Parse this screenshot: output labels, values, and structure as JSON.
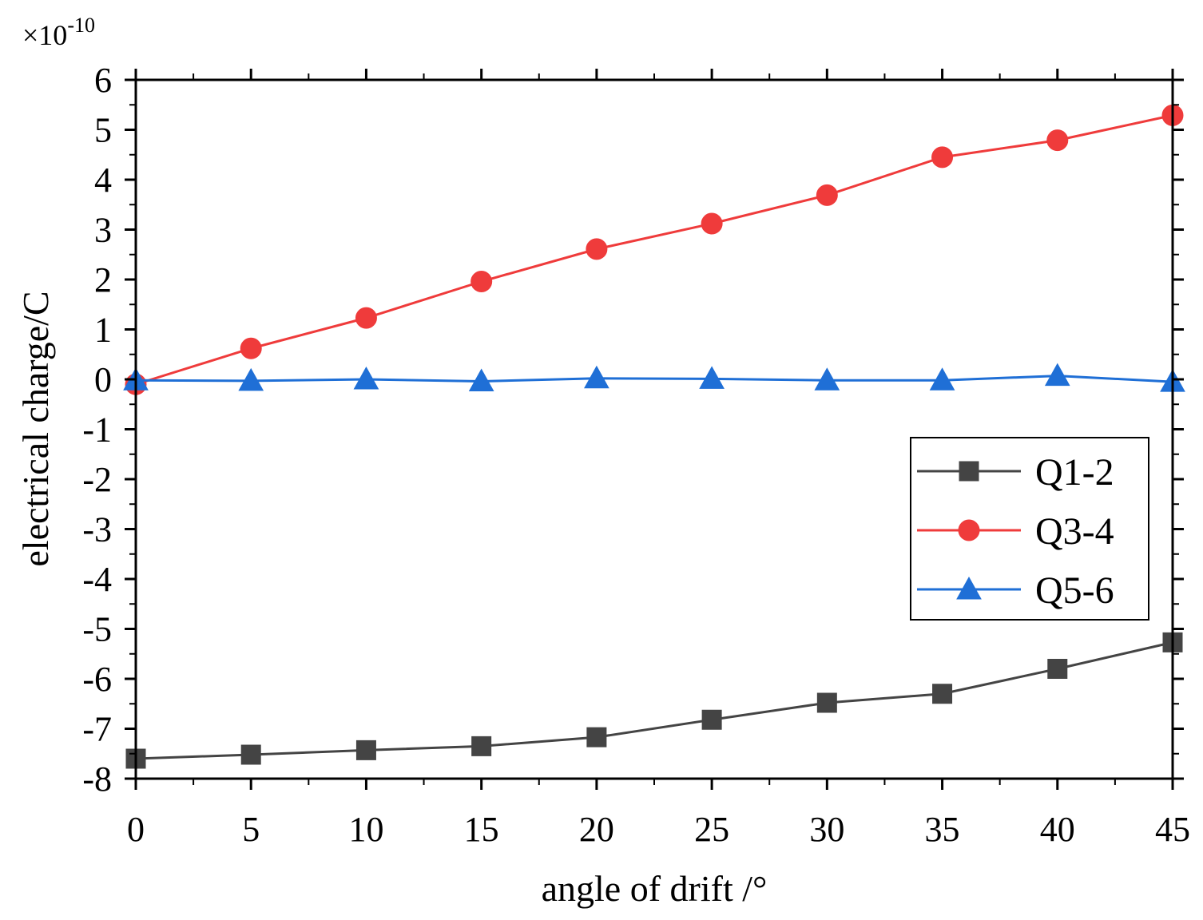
{
  "chart_data": {
    "type": "line",
    "title": "",
    "xlabel": "angle of drift /°",
    "ylabel": "electrical charge/C",
    "y_multiplier": {
      "base": "×10",
      "exponent": "-10"
    },
    "xlim": [
      0,
      45
    ],
    "ylim": [
      -8,
      6
    ],
    "x_ticks": [
      0,
      5,
      10,
      15,
      20,
      25,
      30,
      35,
      40,
      45
    ],
    "x_tick_labels": [
      "0",
      "5",
      "10",
      "15",
      "20",
      "25",
      "30",
      "35",
      "40",
      "45"
    ],
    "y_ticks": [
      -8,
      -7,
      -6,
      -5,
      -4,
      -3,
      -2,
      -1,
      0,
      1,
      2,
      3,
      4,
      5,
      6
    ],
    "y_tick_labels": [
      "-8",
      "-7",
      "-6",
      "-5",
      "-4",
      "-3",
      "-2",
      "-1",
      "0",
      "1",
      "2",
      "3",
      "4",
      "5",
      "6"
    ],
    "grid": false,
    "legend_position": "right",
    "x": [
      0,
      5,
      10,
      15,
      20,
      25,
      30,
      35,
      40,
      45
    ],
    "series": [
      {
        "name": "Q1-2",
        "color": "#444444",
        "marker": "square",
        "values": [
          -7.6,
          -7.52,
          -7.43,
          -7.35,
          -7.17,
          -6.82,
          -6.48,
          -6.3,
          -5.8,
          -5.27
        ]
      },
      {
        "name": "Q3-4",
        "color": "#ef3b3b",
        "marker": "circle",
        "values": [
          -0.1,
          0.62,
          1.23,
          1.96,
          2.61,
          3.12,
          3.69,
          4.45,
          4.79,
          5.29
        ]
      },
      {
        "name": "Q5-6",
        "color": "#1f6fd6",
        "marker": "triangle",
        "values": [
          -0.02,
          -0.03,
          0.0,
          -0.04,
          0.02,
          0.01,
          -0.02,
          -0.02,
          0.07,
          -0.05
        ]
      }
    ]
  }
}
